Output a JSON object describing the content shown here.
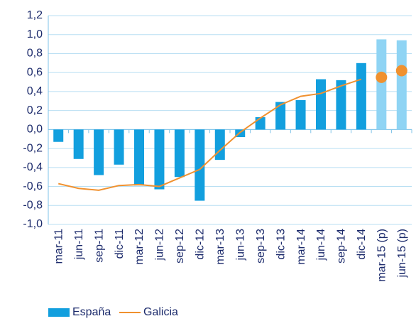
{
  "chart_data": {
    "type": "bar-line",
    "categories": [
      "mar-11",
      "jun-11",
      "sep-11",
      "dic-11",
      "mar-12",
      "jun-12",
      "sep-12",
      "dic-12",
      "mar-13",
      "jun-13",
      "sep-13",
      "dic-13",
      "mar-14",
      "jun-14",
      "sep-14",
      "dic-14",
      "mar-15 (p)",
      "jun-15 (p)"
    ],
    "projected": [
      false,
      false,
      false,
      false,
      false,
      false,
      false,
      false,
      false,
      false,
      false,
      false,
      false,
      false,
      false,
      false,
      true,
      true
    ],
    "series": [
      {
        "name": "España",
        "type": "bar",
        "color": "#129fde",
        "projected_color": "#8fd4f4",
        "values": [
          -0.13,
          -0.31,
          -0.48,
          -0.37,
          -0.59,
          -0.63,
          -0.5,
          -0.75,
          -0.32,
          -0.08,
          0.13,
          0.29,
          0.31,
          0.53,
          0.52,
          0.7,
          0.95,
          0.94
        ]
      },
      {
        "name": "Galicia",
        "type": "line",
        "color": "#f0912f",
        "values": [
          -0.57,
          -0.62,
          -0.64,
          -0.59,
          -0.58,
          -0.6,
          -0.51,
          -0.42,
          -0.22,
          -0.03,
          0.12,
          0.26,
          0.35,
          0.38,
          0.46,
          0.53,
          0.55,
          0.62
        ]
      }
    ],
    "ylim": [
      -1.0,
      1.2
    ],
    "yticks": [
      {
        "value": -1.0,
        "label": "-1,0"
      },
      {
        "value": -0.8,
        "label": "-0,8"
      },
      {
        "value": -0.6,
        "label": "-0,6"
      },
      {
        "value": -0.4,
        "label": "-0,4"
      },
      {
        "value": -0.2,
        "label": "-0,2"
      },
      {
        "value": 0,
        "label": "0,0"
      },
      {
        "value": 0.2,
        "label": "0,2"
      },
      {
        "value": 0.4,
        "label": "0,4"
      },
      {
        "value": 0.6,
        "label": "0,6"
      },
      {
        "value": 0.8,
        "label": "0,8"
      },
      {
        "value": 1.0,
        "label": "1,0"
      },
      {
        "value": 1.2,
        "label": "1,2"
      }
    ],
    "grid": true
  }
}
